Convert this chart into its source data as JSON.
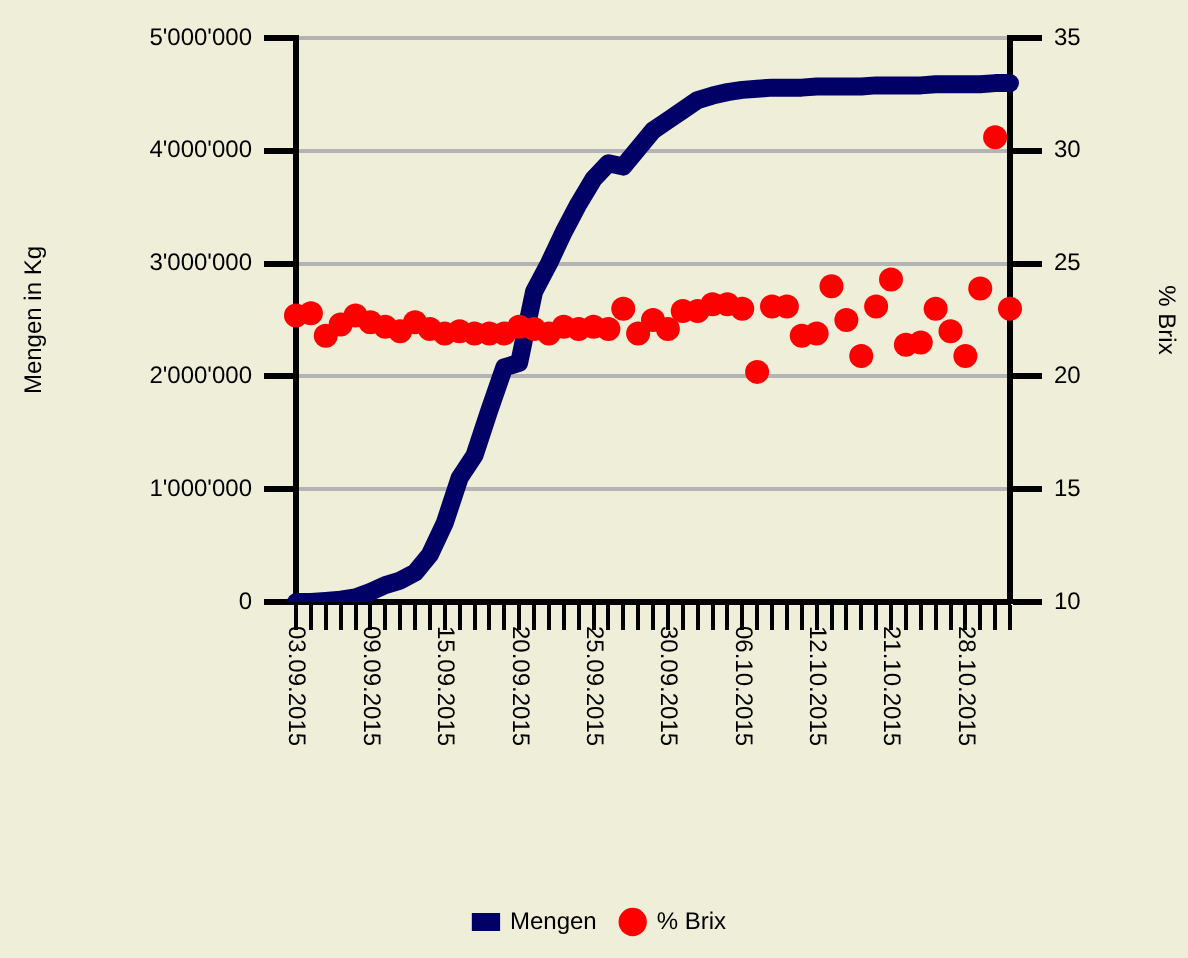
{
  "chart_data": {
    "type": "line",
    "ylabel": "Mengen in Kg",
    "y2label": "% Brix",
    "grid": "y",
    "legend": "bottom",
    "categories": [
      "03.09.2015",
      null,
      null,
      null,
      null,
      "09.09.2015",
      null,
      null,
      null,
      null,
      "15.09.2015",
      null,
      null,
      null,
      null,
      "20.09.2015",
      null,
      null,
      null,
      null,
      "25.09.2015",
      null,
      null,
      null,
      null,
      "30.09.2015",
      null,
      null,
      null,
      null,
      "06.10.2015",
      null,
      null,
      null,
      null,
      "12.10.2015",
      null,
      null,
      null,
      null,
      "21.10.2015",
      null,
      null,
      null,
      null,
      "28.10.2015",
      null,
      null,
      null
    ],
    "ylim": [
      0,
      5000000
    ],
    "yticks": [
      0,
      {
        "value": 1000000,
        "label": "1'000'000"
      },
      {
        "value": 2000000,
        "label": "2'000'000"
      },
      {
        "value": 3000000,
        "label": "3'000'000"
      },
      {
        "value": 4000000,
        "label": "4'000'000"
      },
      {
        "value": 5000000,
        "label": "5'000'000"
      }
    ],
    "y2lim": [
      10,
      35
    ],
    "y2ticks": [
      10,
      15,
      20,
      25,
      30,
      35
    ],
    "series": [
      {
        "name": "Mengen",
        "type": "line",
        "color": "#000066",
        "values": [
          0,
          0,
          10000,
          20000,
          40000,
          90000,
          150000,
          190000,
          260000,
          420000,
          700000,
          1100000,
          1300000,
          1700000,
          2080000,
          2120000,
          2750000,
          3000000,
          3280000,
          3530000,
          3750000,
          3890000,
          3860000,
          4020000,
          4180000,
          4270000,
          4360000,
          4450000,
          4490000,
          4520000,
          4540000,
          4550000,
          4560000,
          4560000,
          4560000,
          4570000,
          4570000,
          4570000,
          4570000,
          4580000,
          4580000,
          4580000,
          4580000,
          4590000,
          4590000,
          4590000,
          4590000,
          4600000,
          4600000
        ]
      },
      {
        "name": "% Brix",
        "type": "scatter",
        "axis": "y2",
        "marker": "circle",
        "color": "#ff0000",
        "values": [
          22.7,
          22.8,
          21.8,
          22.3,
          22.7,
          22.4,
          22.2,
          22.0,
          22.4,
          22.1,
          21.9,
          22.0,
          21.9,
          21.9,
          21.9,
          22.2,
          22.1,
          21.9,
          22.2,
          22.1,
          22.2,
          22.1,
          23.0,
          21.9,
          22.5,
          22.1,
          22.9,
          22.9,
          23.2,
          23.2,
          23.0,
          20.2,
          23.1,
          23.1,
          21.8,
          21.9,
          24.0,
          22.5,
          20.9,
          23.1,
          24.3,
          21.4,
          21.5,
          23.0,
          22.0,
          20.9,
          23.9,
          30.6,
          23.0
        ]
      }
    ]
  }
}
